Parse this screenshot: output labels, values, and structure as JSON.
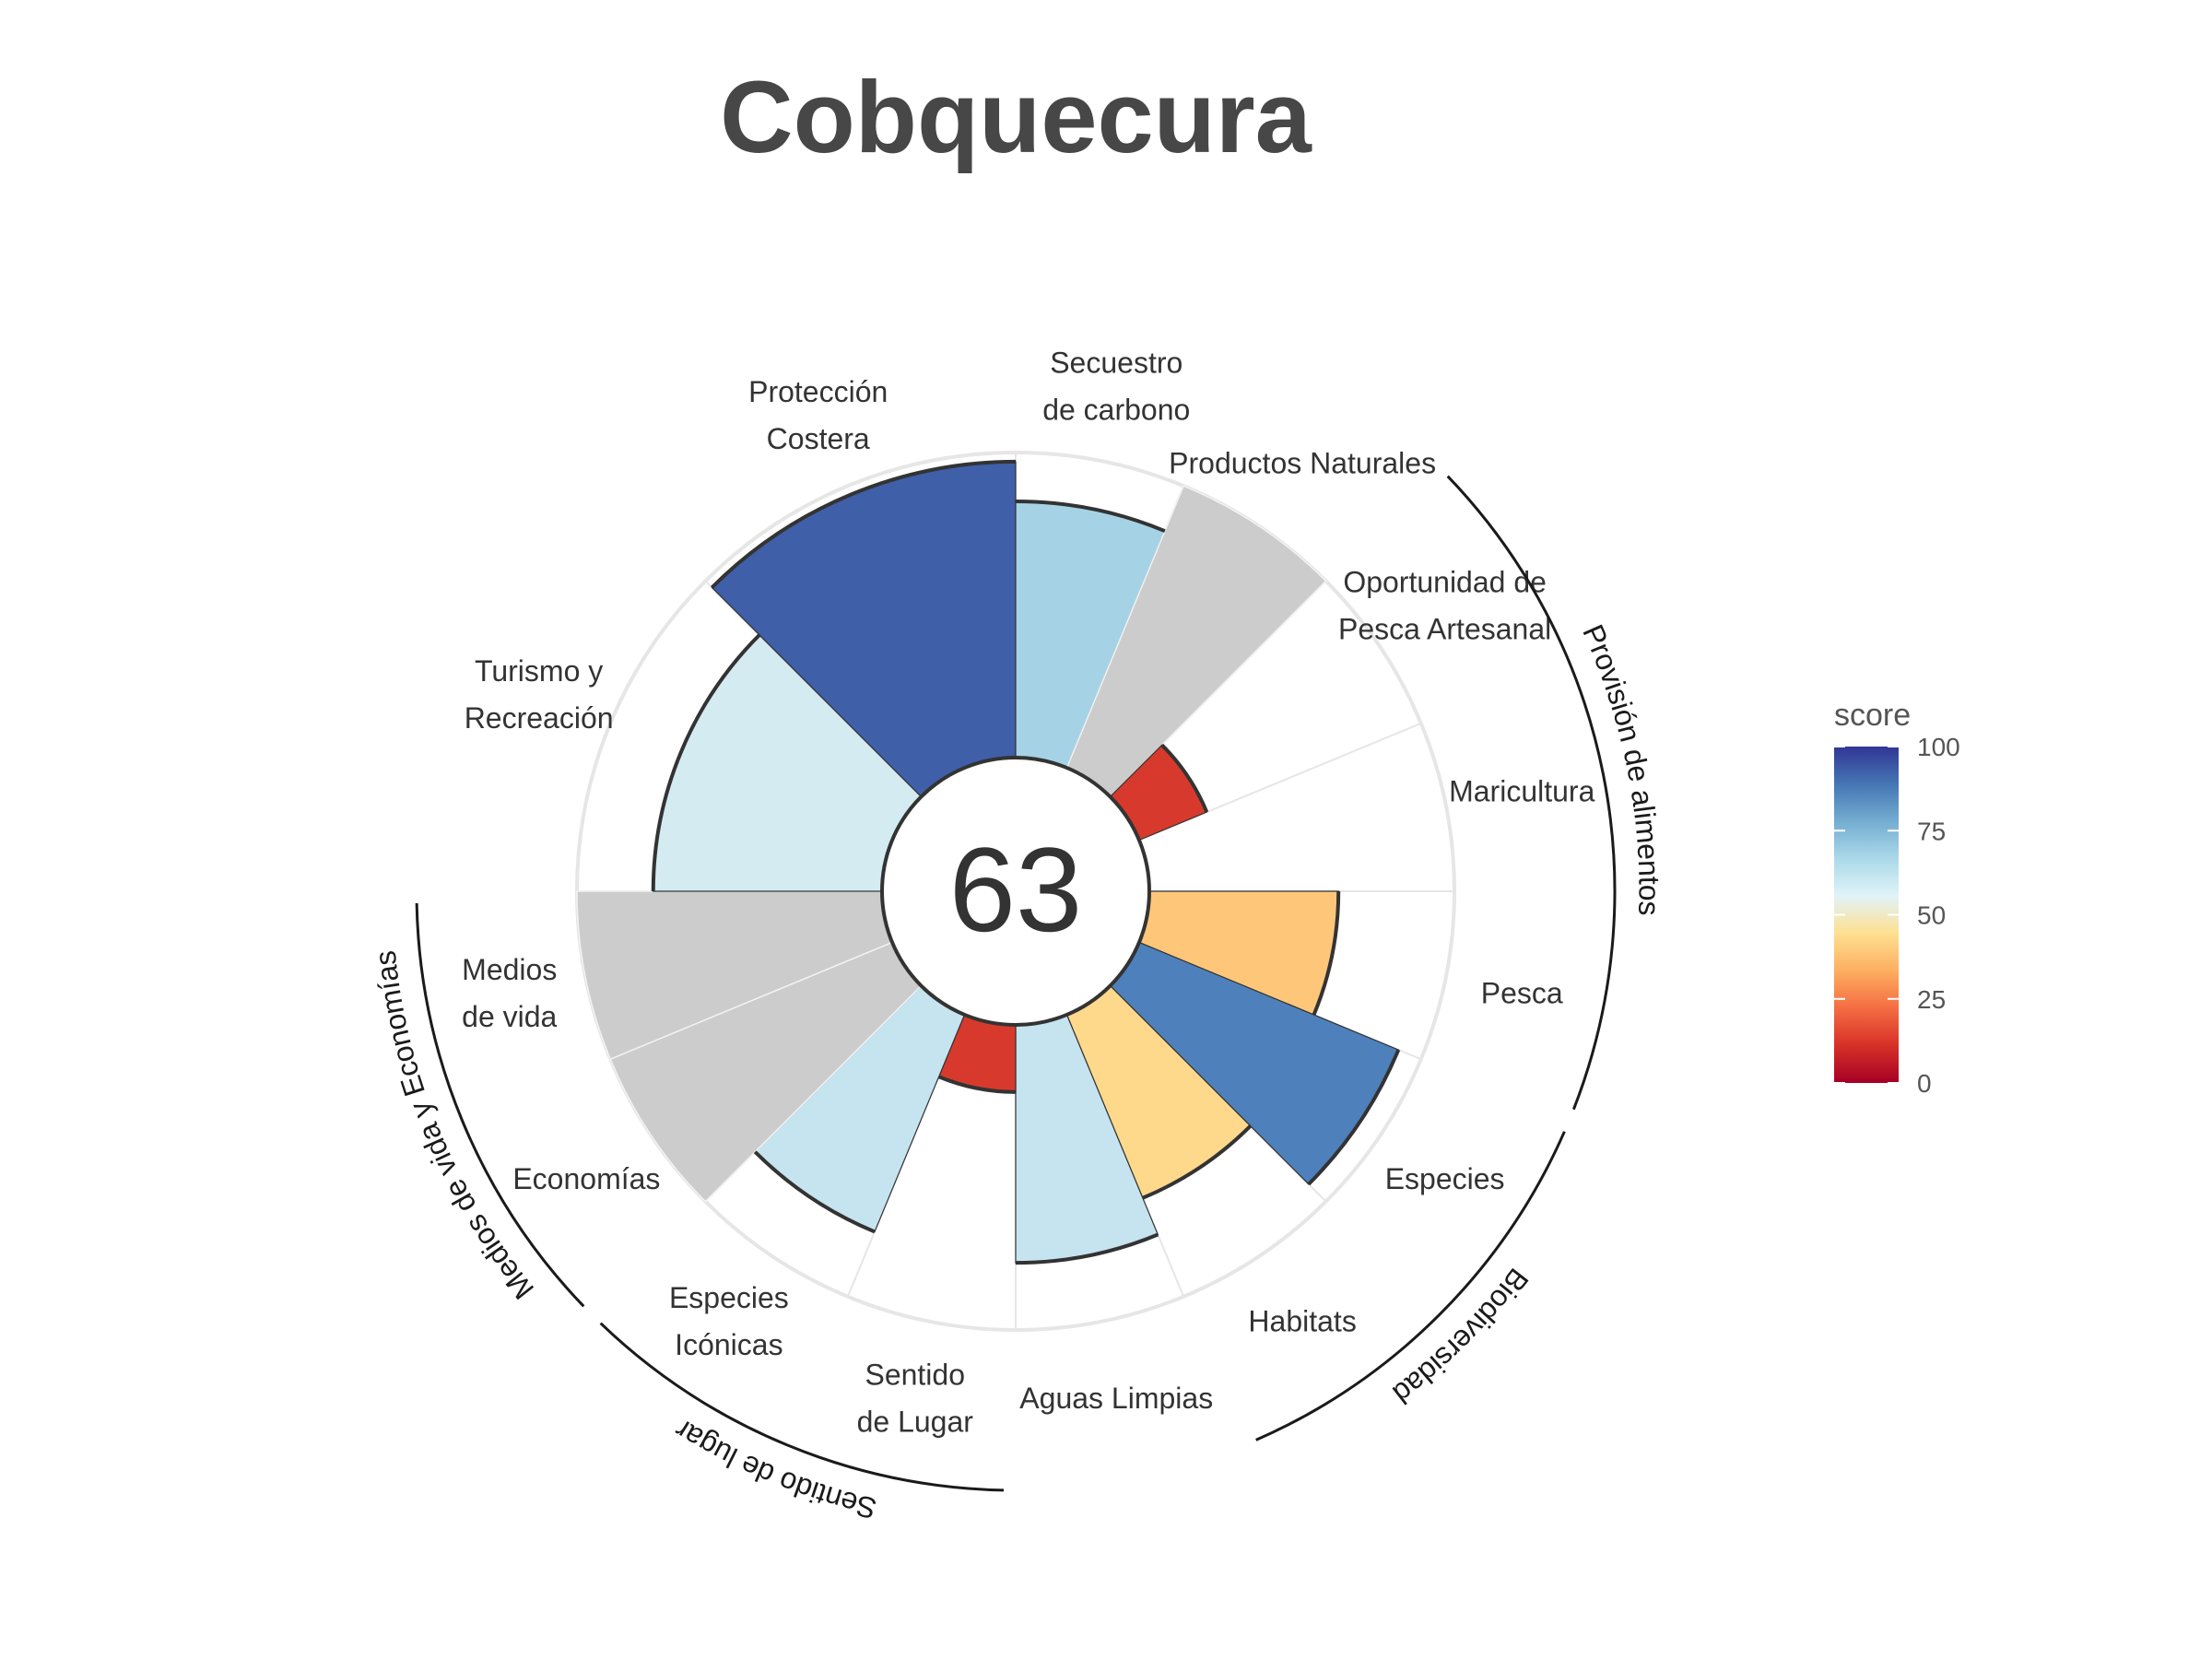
{
  "chart_data": {
    "type": "rose",
    "title": "Cobquecura",
    "overall_score": "63",
    "value_range": [
      0,
      100
    ],
    "na_color": "#cccccc",
    "goals": [
      {
        "label": [
          "Pesca"
        ],
        "score": 62,
        "weight": 1,
        "na": false,
        "color": "#fec679"
      },
      {
        "label": [
          "Especies"
        ],
        "score": 92,
        "weight": 1,
        "na": false,
        "color": "#4e81bc"
      },
      {
        "label": [
          "Habitats"
        ],
        "score": 65,
        "weight": 1,
        "na": false,
        "color": "#fed98b"
      },
      {
        "label": [
          "Aguas Limpias"
        ],
        "score": 78,
        "weight": 1,
        "na": false,
        "color": "#c5e4ef"
      },
      {
        "label": [
          "Sentido",
          "de Lugar"
        ],
        "score": 22,
        "weight": 1,
        "na": false,
        "color": "#d73a2c"
      },
      {
        "label": [
          "Especies",
          "Icónicas"
        ],
        "score": 77,
        "weight": 1,
        "na": false,
        "color": "#c5e4ef"
      },
      {
        "label": [
          "Economías"
        ],
        "score": 100,
        "weight": 1,
        "na": true,
        "color": "#cccccc"
      },
      {
        "label": [
          "Medios",
          "de vida"
        ],
        "score": 100,
        "weight": 1,
        "na": true,
        "color": "#cccccc"
      },
      {
        "label": [
          "Turismo y",
          "Recreación"
        ],
        "score": 75,
        "weight": 2,
        "na": false,
        "color": "#d4ebf2"
      },
      {
        "label": [
          "Protección",
          "Costera"
        ],
        "score": 97,
        "weight": 2,
        "na": false,
        "color": "#3f5fa8"
      },
      {
        "label": [
          "Secuestro",
          "de carbono"
        ],
        "score": 84,
        "weight": 1,
        "na": false,
        "color": "#a5d3e5"
      },
      {
        "label": [
          "Productos Naturales"
        ],
        "score": 100,
        "weight": 1,
        "na": true,
        "color": "#cccccc"
      },
      {
        "label": [
          "Oportunidad de",
          "Pesca Artesanal"
        ],
        "score": 24,
        "weight": 1,
        "na": false,
        "color": "#d73a2c"
      },
      {
        "label": [
          "Maricultura"
        ],
        "score": 0,
        "weight": 1,
        "na": false,
        "color": "#ffffff"
      }
    ],
    "groups": [
      {
        "label": "Provisión de alimentos",
        "from_goal": 12,
        "to_goal": 0,
        "wrap": true
      },
      {
        "label": "Biodiversidad",
        "from_goal": 1,
        "to_goal": 2
      },
      {
        "label": "Sentido de lugar",
        "from_goal": 4,
        "to_goal": 5
      },
      {
        "label": "Medios de vida y Economías",
        "from_goal": 6,
        "to_goal": 7
      }
    ],
    "legend": {
      "title": "score",
      "ticks": [
        "0",
        "25",
        "50",
        "75",
        "100"
      ],
      "stops": [
        "#a50026",
        "#d73027",
        "#f46d43",
        "#fdae61",
        "#fee090",
        "#e0f3f8",
        "#abd9e9",
        "#74add1",
        "#4575b4",
        "#313695"
      ]
    }
  }
}
